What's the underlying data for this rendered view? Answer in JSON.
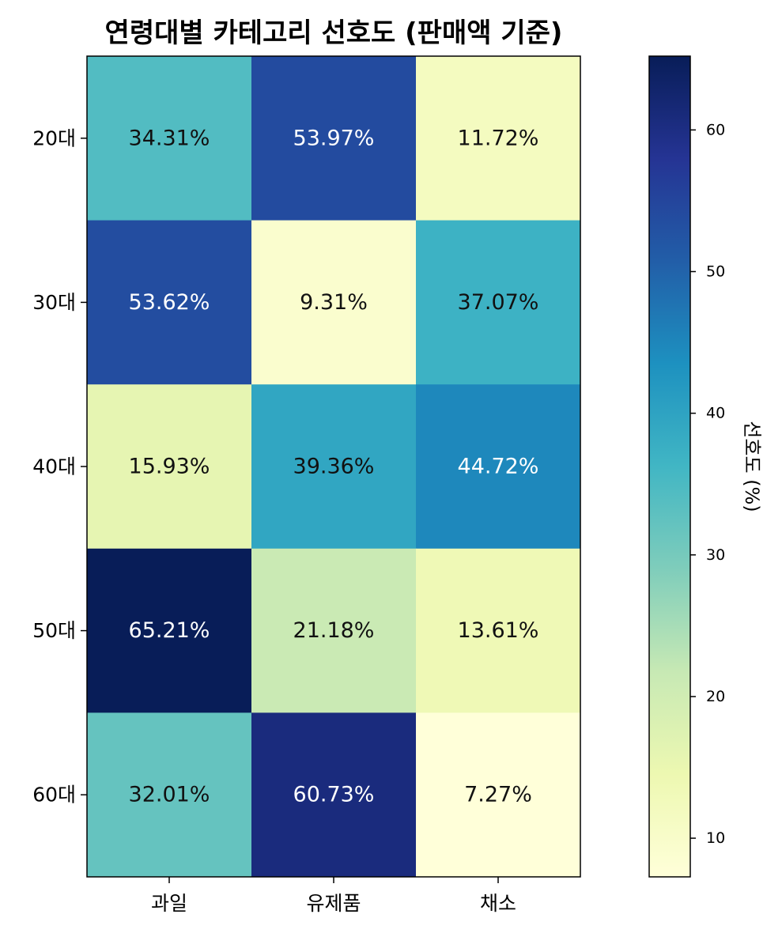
{
  "chart_data": {
    "type": "heatmap",
    "title": "연령대별 카테고리 선호도 (판매액 기준)",
    "x_categories": [
      "과일",
      "유제품",
      "채소"
    ],
    "y_categories": [
      "20대",
      "30대",
      "40대",
      "50대",
      "60대"
    ],
    "values": [
      [
        34.31,
        53.97,
        11.72
      ],
      [
        53.62,
        9.31,
        37.07
      ],
      [
        15.93,
        39.36,
        44.72
      ],
      [
        65.21,
        21.18,
        13.61
      ],
      [
        32.01,
        60.73,
        7.27
      ]
    ],
    "value_labels": [
      [
        "34.31%",
        "53.97%",
        "11.72%"
      ],
      [
        "53.62%",
        "9.31%",
        "37.07%"
      ],
      [
        "15.93%",
        "39.36%",
        "44.72%"
      ],
      [
        "65.21%",
        "21.18%",
        "13.61%"
      ],
      [
        "32.01%",
        "60.73%",
        "7.27%"
      ]
    ],
    "colormap": "YlGnBu",
    "colorbar": {
      "label": "선호도 (%)",
      "range": [
        7.27,
        65.21
      ],
      "ticks": [
        10,
        20,
        30,
        40,
        50,
        60
      ],
      "tick_labels": [
        "10",
        "20",
        "30",
        "40",
        "50",
        "60"
      ]
    },
    "grid": false
  }
}
